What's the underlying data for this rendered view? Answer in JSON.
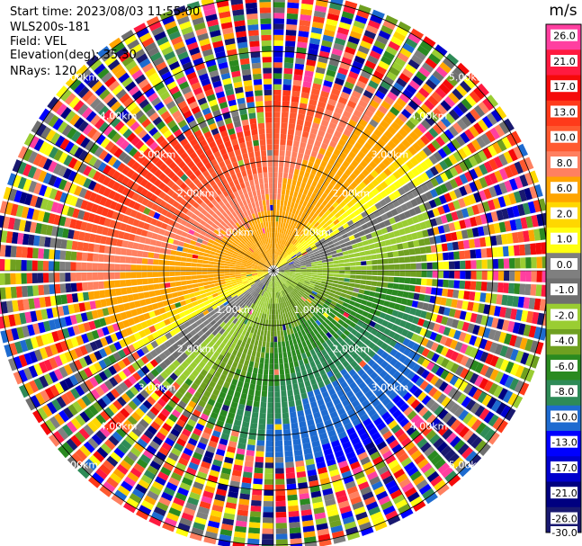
{
  "header": {
    "start_time": "Start time: 2023/08/03 11:55:00",
    "instrument": "WLS200s-181",
    "field": "Field: VEL",
    "elevation": "Elevation(deg): 35.30",
    "nrays": "NRays: 120"
  },
  "colorbar": {
    "unit": "m/s",
    "ticks": [
      "26.0",
      "21.0",
      "17.0",
      "13.0",
      "10.0",
      "8.0",
      "6.0",
      "2.0",
      "1.0",
      "0.0",
      "-1.0",
      "-2.0",
      "-4.0",
      "-6.0",
      "-8.0",
      "-10.0",
      "-13.0",
      "-17.0",
      "-21.0",
      "-26.0",
      "-30.0"
    ],
    "colors": [
      "#ff3fa0",
      "#ff1a40",
      "#f50a0a",
      "#ff3a1a",
      "#ff5a30",
      "#ff8060",
      "#ffa500",
      "#ffd700",
      "#ffff10",
      "#7f7f7f",
      "#6f6f6f",
      "#9acd32",
      "#6fa020",
      "#2a8a20",
      "#2e8b57",
      "#1e6bd0",
      "#0000ff",
      "#0000cd",
      "#000080",
      "#191970"
    ]
  },
  "range_labels": [
    "1.00km",
    "2.00km",
    "3.00km",
    "4.00km",
    "5.00km"
  ],
  "chart_data": {
    "type": "ppi",
    "field": "VEL",
    "unit": "m/s",
    "n_rays": 120,
    "elevation_deg": 35.3,
    "range_rings_km": [
      1,
      2,
      3,
      4,
      5
    ],
    "value_range": [
      -30,
      30
    ]
  }
}
